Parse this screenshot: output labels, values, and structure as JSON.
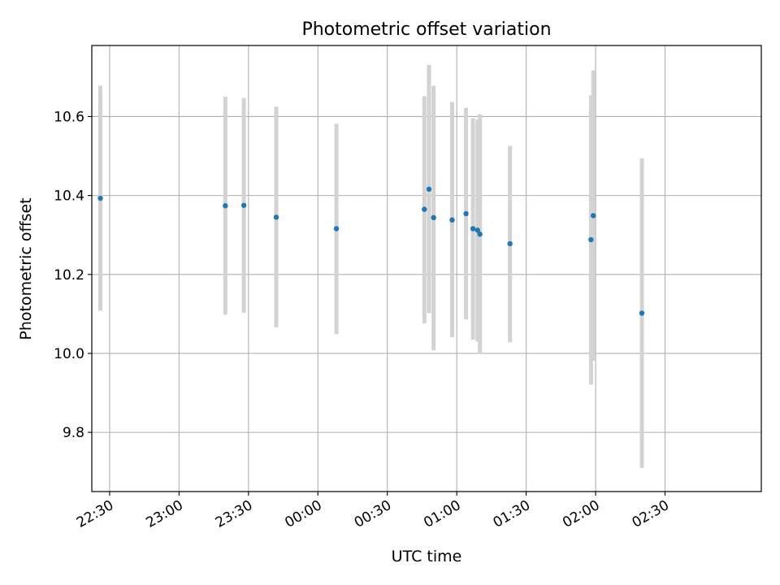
{
  "chart_data": {
    "type": "scatter",
    "title": "Photometric offset variation",
    "xlabel": "UTC time",
    "ylabel": "Photometric offset",
    "ylim": [
      9.65,
      10.78
    ],
    "xlim_minutes": [
      1342.3,
      1631.6
    ],
    "grid": true,
    "x_ticks": [
      {
        "label": "22:30",
        "minutes": 1350
      },
      {
        "label": "23:00",
        "minutes": 1380
      },
      {
        "label": "23:30",
        "minutes": 1410
      },
      {
        "label": "00:00",
        "minutes": 1440
      },
      {
        "label": "00:30",
        "minutes": 1470
      },
      {
        "label": "01:00",
        "minutes": 1500
      },
      {
        "label": "01:30",
        "minutes": 1530
      },
      {
        "label": "02:00",
        "minutes": 1560
      },
      {
        "label": "02:30",
        "minutes": 1590
      }
    ],
    "y_ticks": [
      {
        "label": "9.8",
        "value": 9.8
      },
      {
        "label": "10.0",
        "value": 10.0
      },
      {
        "label": "10.2",
        "value": 10.2
      },
      {
        "label": "10.4",
        "value": 10.4
      },
      {
        "label": "10.6",
        "value": 10.6
      }
    ],
    "colors": {
      "point": "#1f77b4",
      "errorbar": "#d3d3d3",
      "grid": "#b0b0b0",
      "axis": "#000000"
    },
    "points": [
      {
        "time": "22:26",
        "y": 10.393,
        "ylow": 10.108,
        "yhigh": 10.678
      },
      {
        "time": "23:20",
        "y": 10.374,
        "ylow": 10.098,
        "yhigh": 10.65
      },
      {
        "time": "23:28",
        "y": 10.375,
        "ylow": 10.103,
        "yhigh": 10.647
      },
      {
        "time": "23:42",
        "y": 10.345,
        "ylow": 10.066,
        "yhigh": 10.625
      },
      {
        "time": "00:08",
        "y": 10.316,
        "ylow": 10.049,
        "yhigh": 10.582
      },
      {
        "time": "00:46",
        "y": 10.365,
        "ylow": 10.076,
        "yhigh": 10.652
      },
      {
        "time": "00:48",
        "y": 10.416,
        "ylow": 10.102,
        "yhigh": 10.731
      },
      {
        "time": "00:50",
        "y": 10.344,
        "ylow": 10.008,
        "yhigh": 10.678
      },
      {
        "time": "00:58",
        "y": 10.338,
        "ylow": 10.041,
        "yhigh": 10.637
      },
      {
        "time": "01:04",
        "y": 10.354,
        "ylow": 10.086,
        "yhigh": 10.622
      },
      {
        "time": "01:07",
        "y": 10.316,
        "ylow": 10.035,
        "yhigh": 10.596
      },
      {
        "time": "01:09",
        "y": 10.312,
        "ylow": 10.03,
        "yhigh": 10.593
      },
      {
        "time": "01:10",
        "y": 10.302,
        "ylow": 9.998,
        "yhigh": 10.606
      },
      {
        "time": "01:23",
        "y": 10.278,
        "ylow": 10.028,
        "yhigh": 10.526
      },
      {
        "time": "01:58",
        "y": 10.288,
        "ylow": 9.921,
        "yhigh": 10.654
      },
      {
        "time": "01:59",
        "y": 10.349,
        "ylow": 9.982,
        "yhigh": 10.717
      },
      {
        "time": "02:20",
        "y": 10.102,
        "ylow": 9.71,
        "yhigh": 10.494
      }
    ]
  }
}
